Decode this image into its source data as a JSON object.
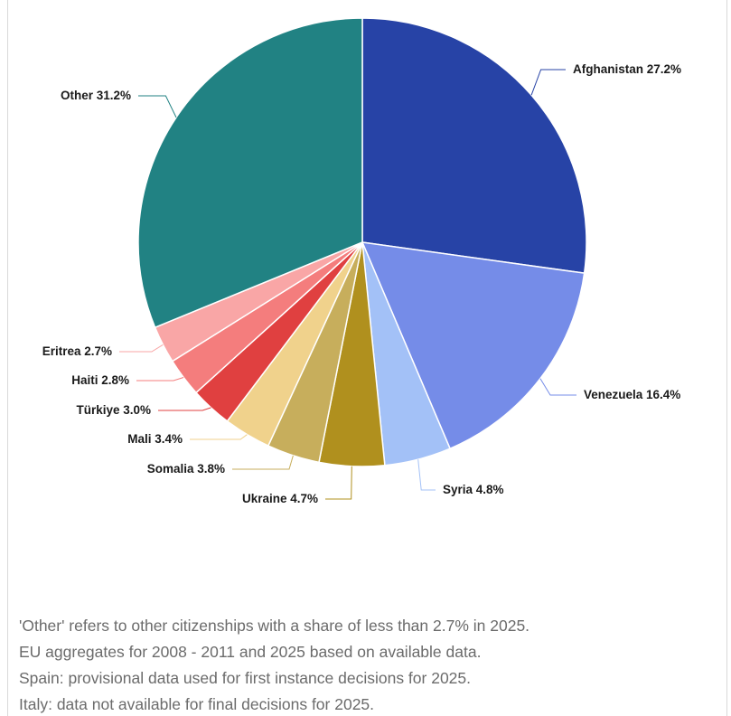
{
  "chart_data": {
    "type": "pie",
    "title": "",
    "start_category": "Afghanistan",
    "direction": "clockwise",
    "slices": [
      {
        "label": "Afghanistan 27.2%",
        "name": "Afghanistan",
        "value": 27.2,
        "color": "#2743a6"
      },
      {
        "label": "Venezuela 16.4%",
        "name": "Venezuela",
        "value": 16.4,
        "color": "#758ce8"
      },
      {
        "label": "Syria 4.8%",
        "name": "Syria",
        "value": 4.8,
        "color": "#a3c1f7"
      },
      {
        "label": "Ukraine 4.7%",
        "name": "Ukraine",
        "value": 4.7,
        "color": "#b0901e"
      },
      {
        "label": "Somalia 3.8%",
        "name": "Somalia",
        "value": 3.8,
        "color": "#c7ae5c"
      },
      {
        "label": "Mali 3.4%",
        "name": "Mali",
        "value": 3.4,
        "color": "#f0d28c"
      },
      {
        "label": "Türkiye 3.0%",
        "name": "Türkiye",
        "value": 3.0,
        "color": "#e04040"
      },
      {
        "label": "Haiti 2.8%",
        "name": "Haiti",
        "value": 2.8,
        "color": "#f47d7d"
      },
      {
        "label": "Eritrea 2.7%",
        "name": "Eritrea",
        "value": 2.7,
        "color": "#f9a6a6"
      },
      {
        "label": "Other 31.2%",
        "name": "Other",
        "value": 31.2,
        "color": "#218283"
      }
    ]
  },
  "notes": [
    "'Other' refers to other citizenships with a share of less than 2.7% in 2025.",
    "EU aggregates for 2008 - 2011 and 2025 based on available data.",
    "Spain: provisional data used for first instance decisions for 2025.",
    "Italy: data not available for final decisions for 2025."
  ]
}
